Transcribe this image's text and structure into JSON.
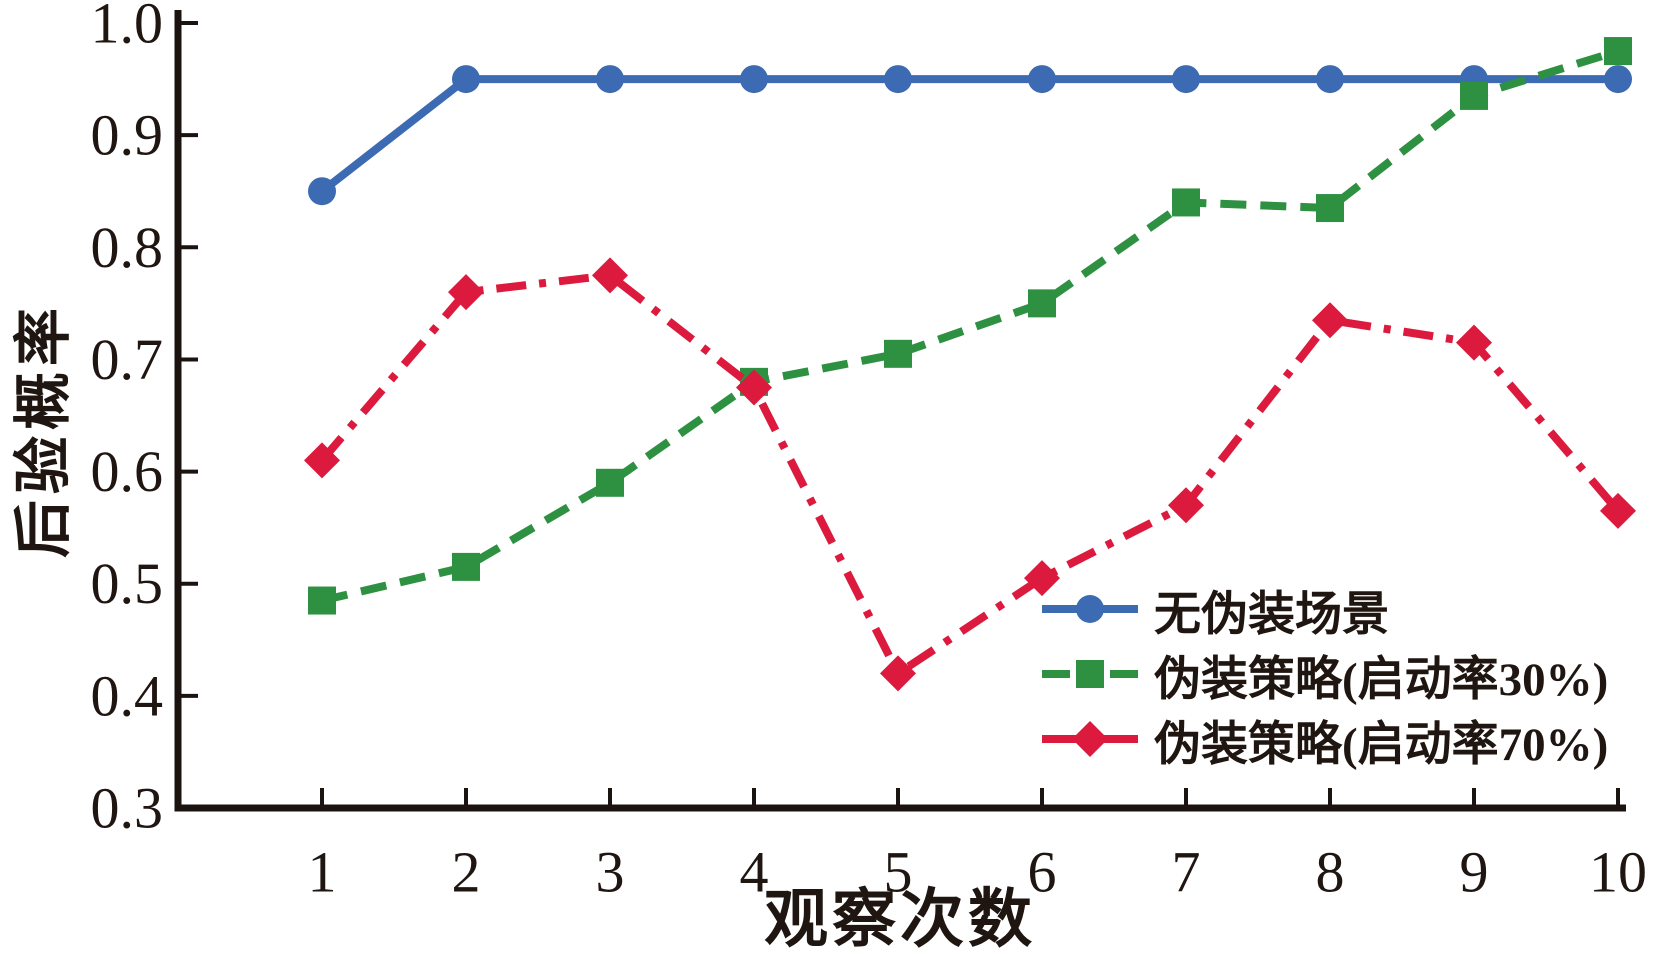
{
  "figure": {
    "background": "#ffffff",
    "x_axis_title": "观察次数",
    "y_axis_title": "后验概率",
    "axis_color": "#1a1310",
    "text_color": "#1f1511"
  },
  "chart_data": {
    "type": "line",
    "x": [
      1,
      2,
      3,
      4,
      5,
      6,
      7,
      8,
      9,
      10
    ],
    "x_tick_labels": [
      "1",
      "2",
      "3",
      "4",
      "5",
      "6",
      "7",
      "8",
      "9",
      "10"
    ],
    "y_ticks": [
      0.3,
      0.4,
      0.5,
      0.6,
      0.7,
      0.8,
      0.9,
      1.0
    ],
    "y_tick_labels": [
      "0.3",
      "0.4",
      "0.5",
      "0.6",
      "0.7",
      "0.8",
      "0.9",
      "1.0"
    ],
    "xlabel": "观察次数",
    "ylabel": "后验概率",
    "ylim": [
      0.3,
      1.0
    ],
    "xlim": [
      1,
      10
    ],
    "grid": false,
    "legend_position": "inside-lower-right",
    "series": [
      {
        "name": "无伪装场景",
        "color": "#3d6bb3",
        "marker": "circle",
        "line_style": "solid",
        "values": [
          0.85,
          0.95,
          0.95,
          0.95,
          0.95,
          0.95,
          0.95,
          0.95,
          0.95,
          0.95
        ]
      },
      {
        "name": "伪装策略(启动率30%)",
        "color": "#2e9142",
        "marker": "square",
        "line_style": "dashed",
        "values": [
          0.485,
          0.515,
          0.59,
          0.68,
          0.705,
          0.75,
          0.84,
          0.835,
          0.935,
          0.975
        ]
      },
      {
        "name": "伪装策略(启动率70%)",
        "color": "#dc1a3e",
        "marker": "diamond",
        "line_style": "dash-dot",
        "values": [
          0.61,
          0.76,
          0.775,
          0.675,
          0.42,
          0.505,
          0.57,
          0.735,
          0.715,
          0.565
        ]
      }
    ]
  }
}
